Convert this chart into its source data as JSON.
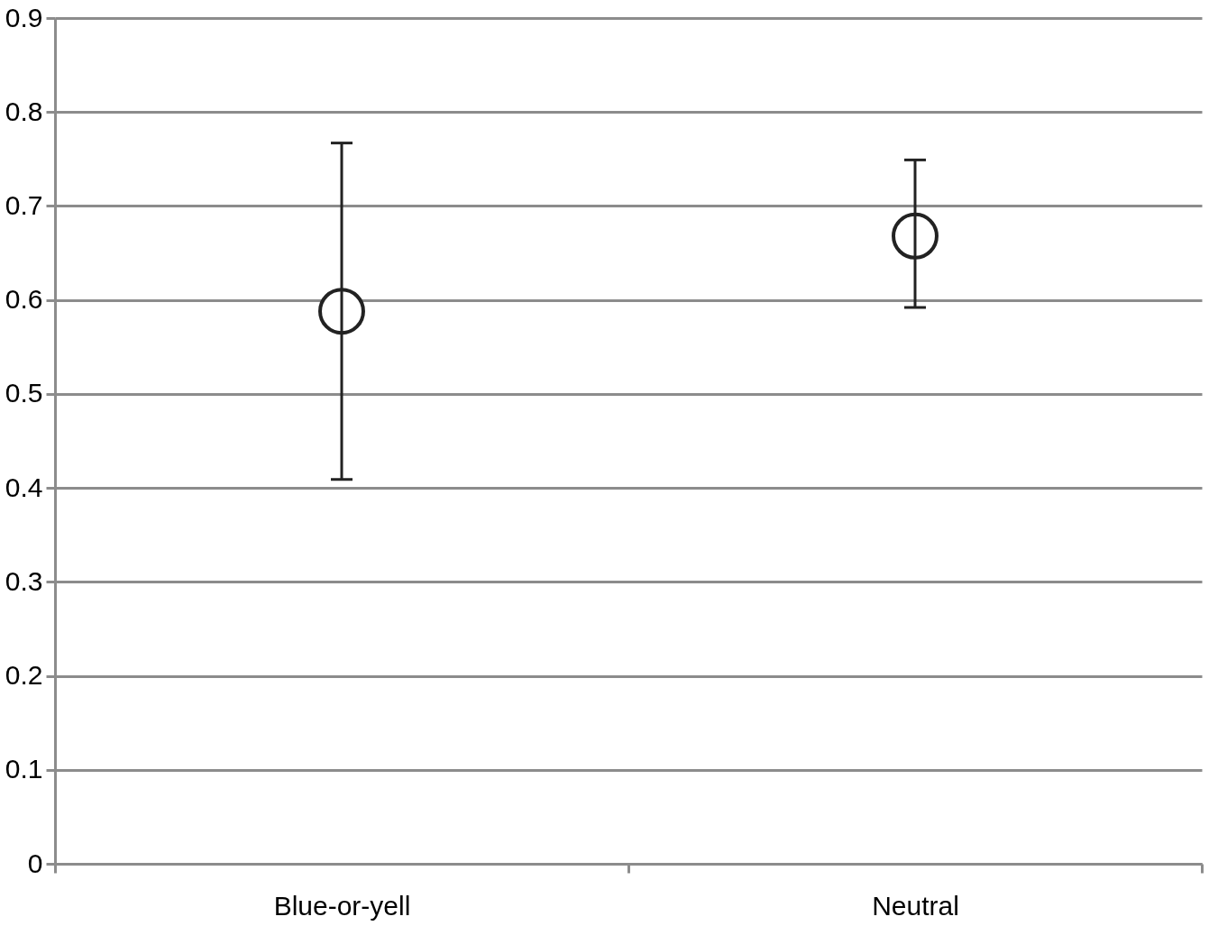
{
  "chart_data": {
    "type": "scatter",
    "categories": [
      "Blue-or-yell",
      "Neutral"
    ],
    "series": [
      {
        "color": "#222222",
        "values": [
          0.588,
          0.668
        ],
        "errors": [
          [
            0.409,
            0.767
          ],
          [
            0.592,
            0.749
          ]
        ]
      }
    ],
    "ylim": [
      0,
      0.9
    ],
    "yticks": [
      0,
      0.1,
      0.2,
      0.3,
      0.4,
      0.5,
      0.6,
      0.7,
      0.8,
      0.9
    ],
    "grid": "y",
    "marker": "circle"
  }
}
